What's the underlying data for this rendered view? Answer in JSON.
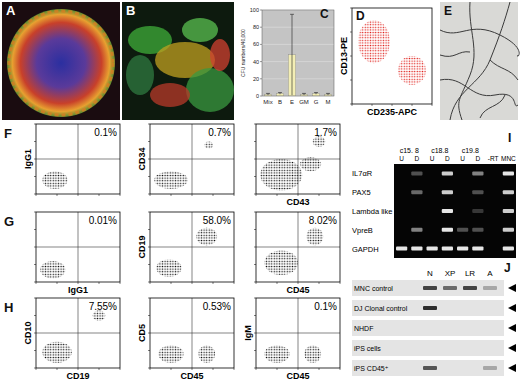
{
  "chart_data": {
    "type": "bar",
    "y_label": "CFU numbers/40,000",
    "categories": [
      "Mix",
      "B",
      "E",
      "GM",
      "G",
      "M"
    ],
    "values": [
      2,
      3,
      48,
      2,
      3,
      2
    ],
    "errors": [
      1,
      1,
      47,
      1,
      1,
      1
    ],
    "color": "#f3eeb4",
    "ylim": [
      0,
      100
    ],
    "yticks": [
      0,
      20,
      40,
      60,
      80,
      100
    ],
    "grid": true
  },
  "figure": {
    "panel_labels": [
      "A",
      "B",
      "C",
      "D",
      "E",
      "F",
      "G",
      "H",
      "I",
      "J"
    ],
    "flow_axes": {
      "xlim": [
        0,
        4
      ],
      "ylim": [
        0,
        4
      ],
      "xticks": [
        0,
        1,
        2,
        3,
        4
      ],
      "yticks": [
        0,
        1,
        2,
        3,
        4
      ],
      "log": true,
      "tick_labels": false
    },
    "panel_d": {
      "x_label": "CD235-APC",
      "y_label": "CD13-PE",
      "color": "#e0201a",
      "populations": [
        {
          "x": 1.1,
          "y": 2.6,
          "sx": 0.8,
          "sy": 0.9
        },
        {
          "x": 3.0,
          "y": 1.4,
          "sx": 0.7,
          "sy": 0.6
        }
      ]
    },
    "flow_rows": [
      {
        "plots": [
          {
            "y_label": "IgG1",
            "percent": "0.1%",
            "quadrant": [
              2,
              2
            ],
            "populations": [
              {
                "x": 0.9,
                "y": 0.8,
                "sx": 0.6,
                "sy": 0.5
              }
            ]
          },
          {
            "y_label": "CD34",
            "percent": "0.7%",
            "quadrant": [
              2,
              2
            ],
            "populations": [
              {
                "x": 1.0,
                "y": 0.8,
                "sx": 0.8,
                "sy": 0.5
              },
              {
                "x": 2.8,
                "y": 2.8,
                "sx": 0.2,
                "sy": 0.2
              }
            ]
          },
          {
            "x_label": "CD43",
            "percent": "1.7%",
            "quadrant": [
              2,
              2
            ],
            "populations": [
              {
                "x": 1.2,
                "y": 1.1,
                "sx": 1.0,
                "sy": 0.9
              },
              {
                "x": 2.6,
                "y": 1.7,
                "sx": 0.5,
                "sy": 0.4
              },
              {
                "x": 3.0,
                "y": 3.0,
                "sx": 0.3,
                "sy": 0.3
              }
            ]
          }
        ]
      },
      {
        "plots": [
          {
            "x_label": "IgG1",
            "percent": "0.01%",
            "quadrant": [
              2,
              2
            ],
            "populations": [
              {
                "x": 0.8,
                "y": 0.7,
                "sx": 0.6,
                "sy": 0.5
              }
            ]
          },
          {
            "y_label": "CD19",
            "percent": "58.0%",
            "quadrant": [
              2,
              2
            ],
            "populations": [
              {
                "x": 2.7,
                "y": 2.6,
                "sx": 0.5,
                "sy": 0.5
              },
              {
                "x": 0.9,
                "y": 0.8,
                "sx": 0.6,
                "sy": 0.5
              }
            ]
          },
          {
            "x_label": "CD45",
            "percent": "8.02%",
            "quadrant": [
              2,
              2
            ],
            "populations": [
              {
                "x": 1.2,
                "y": 1.1,
                "sx": 0.8,
                "sy": 0.7
              },
              {
                "x": 2.8,
                "y": 2.6,
                "sx": 0.4,
                "sy": 0.5
              }
            ]
          }
        ]
      },
      {
        "plots": [
          {
            "x_label": "CD19",
            "y_label": "CD10",
            "percent": "7.55%",
            "quadrant": [
              2,
              2
            ],
            "populations": [
              {
                "x": 3.0,
                "y": 3.0,
                "sx": 0.3,
                "sy": 0.3
              },
              {
                "x": 1.0,
                "y": 0.9,
                "sx": 0.7,
                "sy": 0.6
              }
            ]
          },
          {
            "x_label": "CD45",
            "y_label": "CD5",
            "percent": "0.53%",
            "quadrant": [
              2,
              2
            ],
            "populations": [
              {
                "x": 1.0,
                "y": 0.8,
                "sx": 0.6,
                "sy": 0.5
              },
              {
                "x": 2.7,
                "y": 0.8,
                "sx": 0.4,
                "sy": 0.5
              }
            ]
          },
          {
            "x_label": "CD45",
            "y_label": "IgM",
            "percent": "0.1%",
            "quadrant": [
              2,
              2
            ],
            "populations": [
              {
                "x": 1.0,
                "y": 0.8,
                "sx": 0.6,
                "sy": 0.5
              },
              {
                "x": 2.7,
                "y": 0.8,
                "sx": 0.4,
                "sy": 0.5
              }
            ]
          }
        ]
      }
    ],
    "gel_i": {
      "groups": [
        {
          "label": "c15. 8",
          "lanes": [
            "U",
            "D"
          ]
        },
        {
          "label": "c18.8",
          "lanes": [
            "U",
            "D"
          ]
        },
        {
          "label": "c19.8",
          "lanes": [
            "U",
            "D"
          ]
        },
        {
          "lanes": [
            "-RT",
            "MNC"
          ]
        }
      ],
      "rows": [
        {
          "label": "IL7αR",
          "bands": [
            0,
            0.3,
            0,
            0.8,
            0,
            0.5,
            0,
            0.9
          ]
        },
        {
          "label": "PAX5",
          "bands": [
            0,
            0.4,
            0,
            0.8,
            0,
            0.3,
            0,
            0.8
          ]
        },
        {
          "label": "Lambda like",
          "bands": [
            0,
            0,
            0,
            0.9,
            0,
            0.2,
            0,
            0.8
          ]
        },
        {
          "label": "VpreB",
          "bands": [
            0,
            0.5,
            0,
            0.9,
            0.3,
            0.3,
            0,
            0.8
          ]
        },
        {
          "label": "GAPDH",
          "bands": [
            0.9,
            0.9,
            0.9,
            0.9,
            0.9,
            0.9,
            0,
            0.9
          ]
        }
      ]
    },
    "gel_j": {
      "lanes": [
        "N",
        "XP",
        "LR",
        "A"
      ],
      "rows": [
        {
          "label": "MNC control",
          "bands": [
            0.8,
            0.6,
            0.8,
            0.3
          ]
        },
        {
          "label": "DJ Clonal control",
          "bands": [
            0.9,
            0,
            0,
            0
          ]
        },
        {
          "label": "NHDF",
          "bands": [
            0,
            0,
            0,
            0
          ]
        },
        {
          "label": "iPS cells",
          "bands": [
            0,
            0,
            0,
            0
          ]
        },
        {
          "label": "iPS CD45⁺",
          "bands": [
            0.7,
            0,
            0,
            0.3
          ]
        }
      ]
    }
  }
}
